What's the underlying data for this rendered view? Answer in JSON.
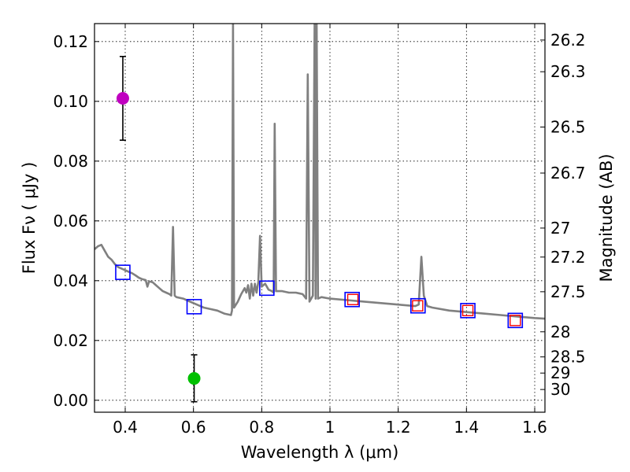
{
  "chart_data": {
    "type": "line",
    "xlabel": "Wavelength  λ (μm)",
    "ylabel": "Flux  Fν  ( μJy )",
    "y2label": "Magnitude (AB)",
    "xlim": [
      0.31,
      1.63
    ],
    "ylim": [
      -0.004,
      0.126
    ],
    "grid": true,
    "x_ticks": [
      0.4,
      0.6,
      0.8,
      1.0,
      1.2,
      1.4,
      1.6
    ],
    "x_tick_labels": [
      "0.4",
      "0.6",
      "0.8",
      "1",
      "1.2",
      "1.4",
      "1.6"
    ],
    "y_ticks": [
      0.0,
      0.02,
      0.04,
      0.06,
      0.08,
      0.1,
      0.12
    ],
    "y_tick_labels": [
      "0.00",
      "0.02",
      "0.04",
      "0.06",
      "0.08",
      "0.10",
      "0.12"
    ],
    "mag_ticks": [
      {
        "label": "26.2",
        "flux": 0.1205
      },
      {
        "label": "26.3",
        "flux": 0.1099
      },
      {
        "label": "26.5",
        "flux": 0.0914
      },
      {
        "label": "26.7",
        "flux": 0.076
      },
      {
        "label": "27",
        "flux": 0.0576
      },
      {
        "label": "27.2",
        "flux": 0.0479
      },
      {
        "label": "27.5",
        "flux": 0.0363
      },
      {
        "label": "28",
        "flux": 0.0229
      },
      {
        "label": "28.5",
        "flux": 0.0145
      },
      {
        "label": "29",
        "flux": 0.0091
      },
      {
        "label": "30",
        "flux": 0.0036
      }
    ],
    "series": [
      {
        "type": "line",
        "color": "#808080",
        "points": [
          [
            0.31,
            0.0505
          ],
          [
            0.32,
            0.0515
          ],
          [
            0.33,
            0.052
          ],
          [
            0.34,
            0.05
          ],
          [
            0.35,
            0.048
          ],
          [
            0.36,
            0.047
          ],
          [
            0.37,
            0.0455
          ],
          [
            0.38,
            0.0445
          ],
          [
            0.39,
            0.044
          ],
          [
            0.4,
            0.0435
          ],
          [
            0.41,
            0.043
          ],
          [
            0.42,
            0.0425
          ],
          [
            0.43,
            0.0418
          ],
          [
            0.44,
            0.041
          ],
          [
            0.45,
            0.0405
          ],
          [
            0.46,
            0.0402
          ],
          [
            0.465,
            0.038
          ],
          [
            0.47,
            0.0398
          ],
          [
            0.48,
            0.0395
          ],
          [
            0.49,
            0.0385
          ],
          [
            0.5,
            0.0375
          ],
          [
            0.51,
            0.0365
          ],
          [
            0.52,
            0.036
          ],
          [
            0.53,
            0.0355
          ],
          [
            0.535,
            0.035
          ],
          [
            0.54,
            0.058
          ],
          [
            0.545,
            0.035
          ],
          [
            0.55,
            0.0345
          ],
          [
            0.57,
            0.034
          ],
          [
            0.59,
            0.033
          ],
          [
            0.61,
            0.032
          ],
          [
            0.63,
            0.031
          ],
          [
            0.65,
            0.0305
          ],
          [
            0.67,
            0.03
          ],
          [
            0.69,
            0.029
          ],
          [
            0.71,
            0.0285
          ],
          [
            0.713,
            0.03
          ],
          [
            0.716,
            0.126
          ],
          [
            0.719,
            0.031
          ],
          [
            0.73,
            0.033
          ],
          [
            0.74,
            0.0355
          ],
          [
            0.75,
            0.0375
          ],
          [
            0.755,
            0.036
          ],
          [
            0.76,
            0.0385
          ],
          [
            0.765,
            0.034
          ],
          [
            0.77,
            0.039
          ],
          [
            0.775,
            0.035
          ],
          [
            0.78,
            0.039
          ],
          [
            0.785,
            0.036
          ],
          [
            0.79,
            0.0395
          ],
          [
            0.795,
            0.055
          ],
          [
            0.8,
            0.038
          ],
          [
            0.81,
            0.039
          ],
          [
            0.82,
            0.037
          ],
          [
            0.83,
            0.0365
          ],
          [
            0.835,
            0.036
          ],
          [
            0.838,
            0.0925
          ],
          [
            0.842,
            0.0365
          ],
          [
            0.86,
            0.0365
          ],
          [
            0.88,
            0.036
          ],
          [
            0.9,
            0.036
          ],
          [
            0.92,
            0.0355
          ],
          [
            0.93,
            0.034
          ],
          [
            0.935,
            0.109
          ],
          [
            0.94,
            0.033
          ],
          [
            0.95,
            0.035
          ],
          [
            0.955,
            0.126
          ],
          [
            0.958,
            0.034
          ],
          [
            0.961,
            0.126
          ],
          [
            0.965,
            0.034
          ],
          [
            0.975,
            0.0345
          ],
          [
            1.0,
            0.034
          ],
          [
            1.05,
            0.0335
          ],
          [
            1.1,
            0.033
          ],
          [
            1.15,
            0.0325
          ],
          [
            1.2,
            0.032
          ],
          [
            1.25,
            0.0315
          ],
          [
            1.26,
            0.032
          ],
          [
            1.268,
            0.048
          ],
          [
            1.275,
            0.035
          ],
          [
            1.285,
            0.0315
          ],
          [
            1.3,
            0.031
          ],
          [
            1.35,
            0.03
          ],
          [
            1.4,
            0.0295
          ],
          [
            1.45,
            0.029
          ],
          [
            1.5,
            0.0285
          ],
          [
            1.55,
            0.028
          ],
          [
            1.6,
            0.0275
          ],
          [
            1.63,
            0.0273
          ]
        ]
      }
    ],
    "model_photometry": {
      "marker": "open square",
      "color": "#0000ff",
      "points": [
        [
          0.393,
          0.0428
        ],
        [
          0.602,
          0.0313
        ],
        [
          0.815,
          0.0375
        ],
        [
          1.065,
          0.0337
        ],
        [
          1.258,
          0.0316
        ],
        [
          1.404,
          0.03
        ],
        [
          1.543,
          0.0267
        ]
      ]
    },
    "observed_photometry": {
      "marker": "open square",
      "color": "#ff0000",
      "points": [
        [
          1.067,
          0.0337
        ],
        [
          1.257,
          0.0316
        ],
        [
          1.404,
          0.03
        ],
        [
          1.543,
          0.0267
        ]
      ]
    },
    "highlighted_points": [
      {
        "x": 0.393,
        "y": 0.101,
        "err_low": 0.087,
        "err_high": 0.115,
        "color": "#c000c0"
      },
      {
        "x": 0.602,
        "y": 0.0073,
        "err_low": -0.0005,
        "err_high": 0.0152,
        "color": "#00c000"
      }
    ]
  }
}
